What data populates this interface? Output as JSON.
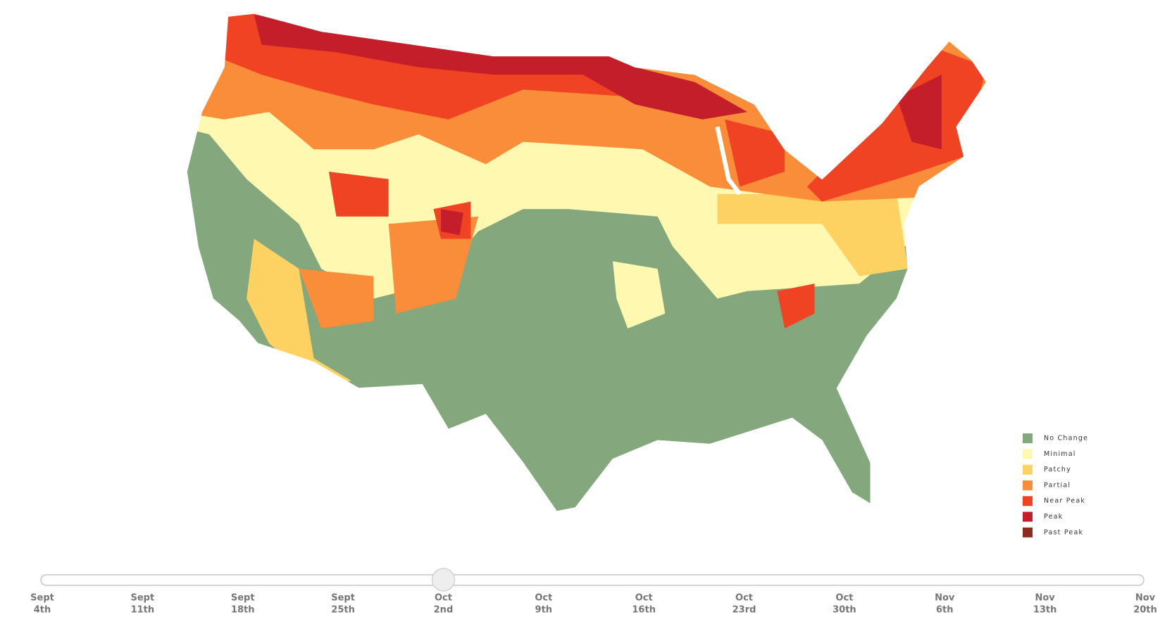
{
  "legend": {
    "items": [
      {
        "label": "No Change",
        "color": "#84a77d"
      },
      {
        "label": "Minimal",
        "color": "#fff8b0"
      },
      {
        "label": "Patchy",
        "color": "#fdd263"
      },
      {
        "label": "Partial",
        "color": "#f98d3a"
      },
      {
        "label": "Near Peak",
        "color": "#ef4323"
      },
      {
        "label": "Peak",
        "color": "#c41e2a"
      },
      {
        "label": "Past Peak",
        "color": "#8b2a1e"
      }
    ]
  },
  "slider": {
    "selected": 4,
    "dates": [
      {
        "month": "Sept",
        "day": "4th"
      },
      {
        "month": "Sept",
        "day": "11th"
      },
      {
        "month": "Sept",
        "day": "18th"
      },
      {
        "month": "Sept",
        "day": "25th"
      },
      {
        "month": "Oct",
        "day": "2nd"
      },
      {
        "month": "Oct",
        "day": "9th"
      },
      {
        "month": "Oct",
        "day": "16th"
      },
      {
        "month": "Oct",
        "day": "23rd"
      },
      {
        "month": "Oct",
        "day": "30th"
      },
      {
        "month": "Nov",
        "day": "6th"
      },
      {
        "month": "Nov",
        "day": "13th"
      },
      {
        "month": "Nov",
        "day": "20th"
      }
    ]
  }
}
